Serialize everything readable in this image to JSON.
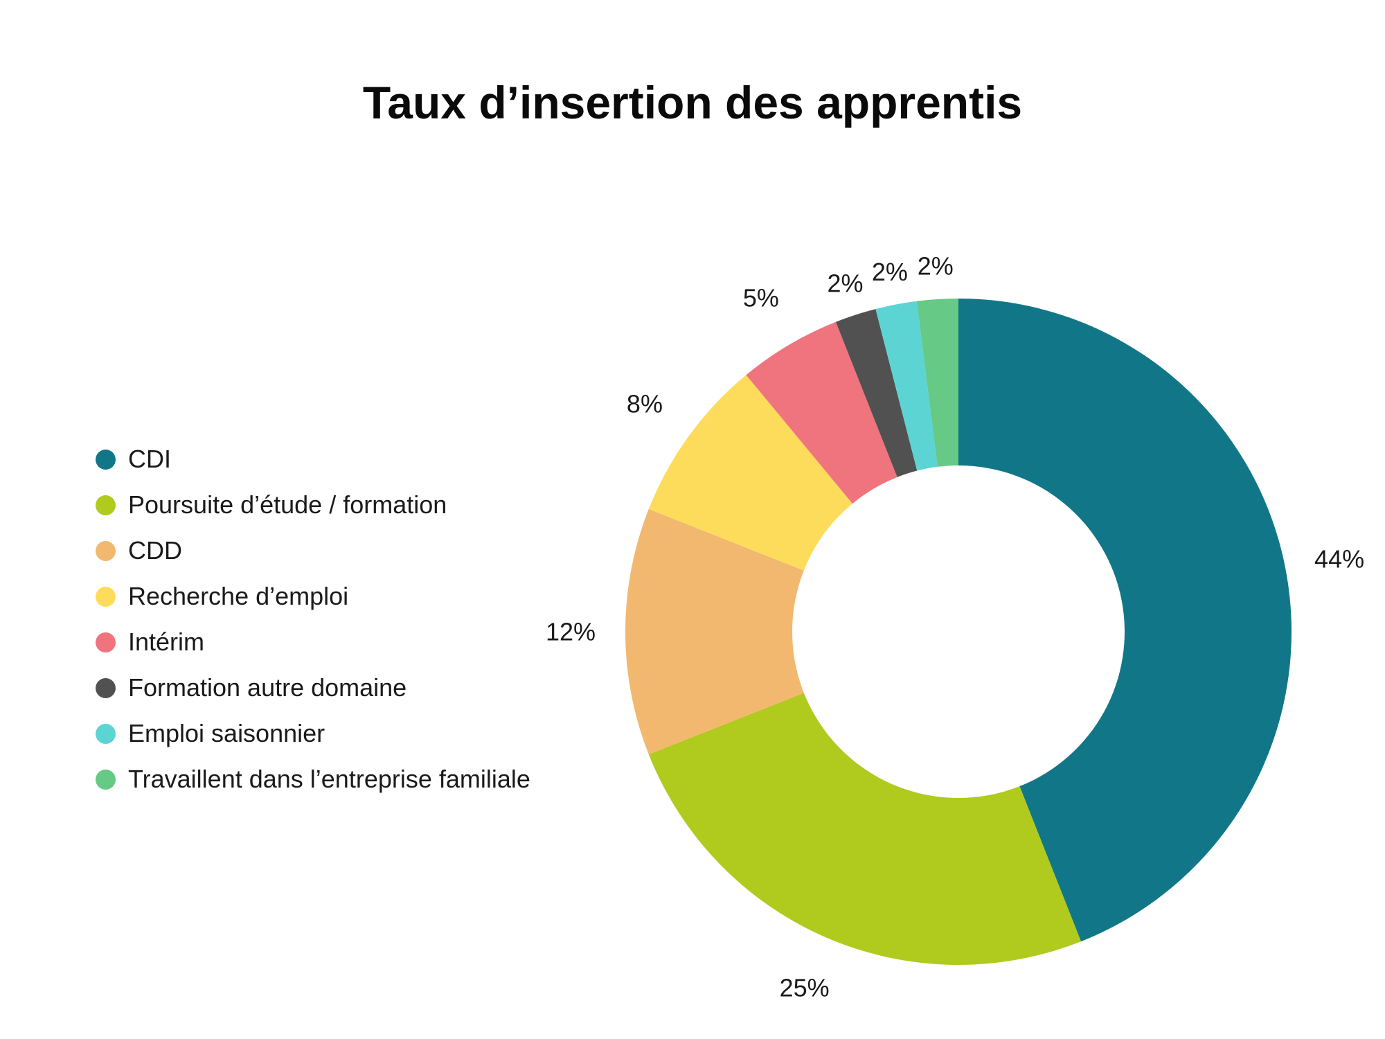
{
  "chart_data": {
    "type": "pie",
    "variant": "donut",
    "title": "Taux d’insertion des apprentis",
    "legend_position": "left",
    "slices": [
      {
        "label": "CDI",
        "value": 44,
        "value_label": "44%",
        "color": "#117788"
      },
      {
        "label": "Poursuite d’étude / formation",
        "value": 25,
        "value_label": "25%",
        "color": "#b1ca1e"
      },
      {
        "label": "CDD",
        "value": 12,
        "value_label": "12%",
        "color": "#f2b86f"
      },
      {
        "label": "Recherche d’emploi",
        "value": 8,
        "value_label": "8%",
        "color": "#fedc5b"
      },
      {
        "label": "Intérim",
        "value": 5,
        "value_label": "5%",
        "color": "#ef747d"
      },
      {
        "label": "Formation autre domaine",
        "value": 2,
        "value_label": "2%",
        "color": "#515151"
      },
      {
        "label": "Emploi saisonnier",
        "value": 2,
        "value_label": "2%",
        "color": "#5cd4d4"
      },
      {
        "label": "Travaillent dans l’entreprise familiale",
        "value": 2,
        "value_label": "2%",
        "color": "#66c986"
      }
    ]
  }
}
